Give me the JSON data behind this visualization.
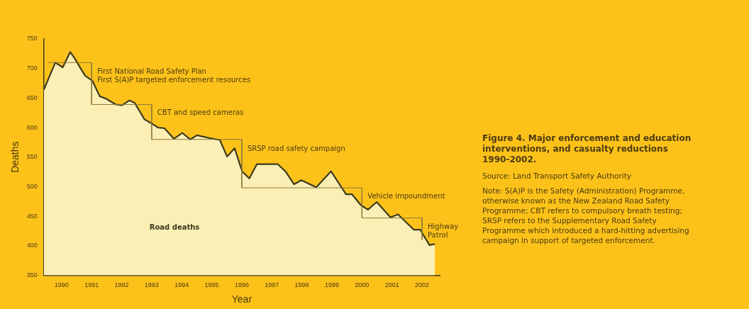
{
  "chart_data": {
    "type": "area",
    "title": "Figure 4. Major enforcement and education interventions, and casualty reductions 1990-2002.",
    "xlabel": "Year",
    "ylabel": "Deaths",
    "xlim": [
      1989.41,
      2002.59
    ],
    "xticks": [
      1990,
      1991,
      1992,
      1993,
      1994,
      1995,
      1996,
      1997,
      1998,
      1999,
      2000,
      2001,
      2002
    ],
    "ylim": [
      350,
      750
    ],
    "yticks": [
      350,
      400,
      450,
      500,
      550,
      600,
      650,
      700,
      750
    ],
    "grid": false,
    "legend": false,
    "marker": "none",
    "series": [
      {
        "name": "Road deaths",
        "color": "#3b3a1e",
        "x": [
          1989.41,
          1989.79,
          1990.04,
          1990.29,
          1990.45,
          1990.78,
          1991.03,
          1991.27,
          1991.48,
          1991.81,
          1992.02,
          1992.26,
          1992.43,
          1992.76,
          1993.0,
          1993.21,
          1993.42,
          1993.74,
          1994.02,
          1994.28,
          1994.51,
          1994.94,
          1995.27,
          1995.51,
          1995.76,
          1996.01,
          1996.25,
          1996.5,
          1997.2,
          1997.45,
          1997.74,
          1997.98,
          1998.48,
          1998.97,
          1999.47,
          1999.67,
          1999.96,
          2000.2,
          2000.49,
          2000.95,
          2001.2,
          2001.73,
          2001.94,
          2002.25,
          2002.43
        ],
        "values": [
          664,
          710,
          702,
          728,
          716,
          688,
          679,
          653,
          649,
          639,
          638,
          646,
          642,
          614,
          607,
          600,
          599,
          581,
          591,
          580,
          587,
          582,
          579,
          551,
          565,
          526,
          514,
          538,
          538,
          526,
          504,
          511,
          499,
          526,
          487,
          487,
          469,
          461,
          474,
          448,
          453,
          427,
          427,
          401,
          403
        ]
      },
      {
        "type": "line",
        "color": "#8c7b3a",
        "x": [
          1989.55,
          1991,
          1991,
          1993,
          1993,
          1996,
          1996,
          2000,
          2000,
          2002,
          2002
        ],
        "values": [
          710,
          710,
          639,
          639,
          580,
          580,
          498,
          498,
          447,
          447,
          410
        ]
      }
    ],
    "annotations": [
      {
        "text": "First National Road Safety Plan\nFirst S(A)P targeted enforcement resources",
        "x": 1991,
        "y": 694
      },
      {
        "text": "CBT and speed cameras",
        "x": 1993,
        "y": 625
      },
      {
        "text": "SRSP road safety campaign",
        "x": 1996,
        "y": 564
      },
      {
        "text": "Vehicle impoundment",
        "x": 2000,
        "y": 483
      },
      {
        "text": "Highway\nPatrol",
        "x": 2002,
        "y": 431
      },
      "Source: Land Transport Safety Authority",
      "Note: S(A)P is the Safety (Administration) Programme, otherwise known as the New Zealand Road Safety Programme; CBT refers to compulsory breath testing; SRSP refers to the Supplementary Road Safety Programme which introduced a hard-hitting advertising campaign in support of targeted enforcement."
    ]
  }
}
